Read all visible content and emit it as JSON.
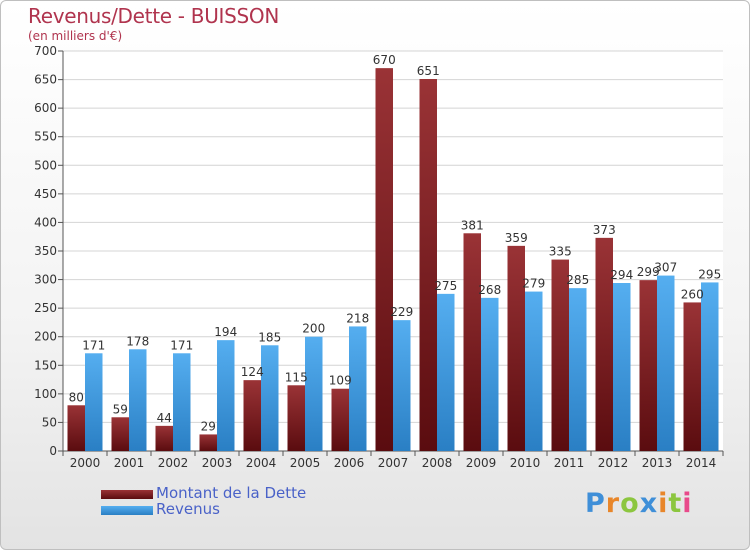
{
  "header": {
    "title": "Revenus/Dette - BUISSON",
    "subtitle": "(en milliers d'€)"
  },
  "colors": {
    "dette": "#7a1f22",
    "revenus": "#3f9ae0",
    "title": "#b0344e",
    "legend_text": "#4a62c8"
  },
  "chart_data": {
    "type": "bar",
    "title": "Revenus/Dette - BUISSON",
    "subtitle": "(en milliers d'€)",
    "categories": [
      "2000",
      "2001",
      "2002",
      "2003",
      "2004",
      "2005",
      "2006",
      "2007",
      "2008",
      "2009",
      "2010",
      "2011",
      "2012",
      "2013",
      "2014"
    ],
    "series": [
      {
        "name": "Montant de la Dette",
        "color": "#7a1f22",
        "values": [
          80,
          59,
          44,
          29,
          124,
          115,
          109,
          670,
          651,
          381,
          359,
          335,
          373,
          299,
          260
        ]
      },
      {
        "name": "Revenus",
        "color": "#3f9ae0",
        "values": [
          171,
          178,
          171,
          194,
          185,
          200,
          218,
          229,
          275,
          268,
          279,
          285,
          294,
          307,
          295
        ]
      }
    ],
    "ylim": [
      0,
      700
    ],
    "yticks": [
      0,
      50,
      100,
      150,
      200,
      250,
      300,
      350,
      400,
      450,
      500,
      550,
      600,
      650,
      700
    ],
    "grid": true,
    "legend_position": "bottom-left"
  },
  "legend": {
    "dette_label": "Montant de la Dette",
    "revenus_label": "Revenus"
  },
  "logo": {
    "text": "Proxiti",
    "letters": [
      "P",
      "r",
      "o",
      "x",
      "i",
      "t",
      "i"
    ],
    "colors": [
      "#3f8fd8",
      "#e8862a",
      "#8cc63f",
      "#3f8fd8",
      "#e8862a",
      "#8cc63f",
      "#e84a8a"
    ]
  }
}
